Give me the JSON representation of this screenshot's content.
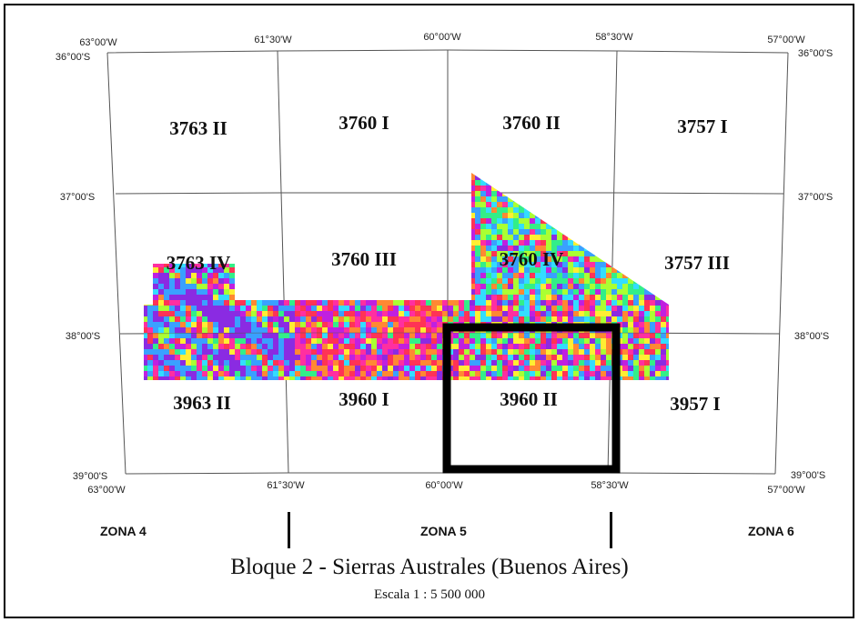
{
  "coordinates": {
    "top": {
      "lon_63": "63°00'W",
      "lat_36_left": "36°00'S",
      "lon_6130": "61°30'W",
      "lon_60": "60°00'W",
      "lon_5830": "58°30'W",
      "lon_57": "57°00'W",
      "lat_36_right": "36°00'S"
    },
    "left": {
      "lat_37": "37°00'S",
      "lat_38": "38°00'S",
      "lat_39": "39°00'S"
    },
    "right": {
      "lat_37": "37°00'S",
      "lat_38": "38°00'S",
      "lat_39": "39°00'S"
    },
    "bottom": {
      "lon_63": "63°00'W",
      "lon_6130": "61°30'W",
      "lon_60": "60°00'W",
      "lon_5830": "58°30'W",
      "lon_57": "57°00'W"
    }
  },
  "sheets": {
    "s3763_II": "3763 II",
    "s3760_I": "3760 I",
    "s3760_II": "3760 II",
    "s3757_I": "3757 I",
    "s3763_IV": "3763 IV",
    "s3760_III": "3760 III",
    "s3760_IV": "3760 IV",
    "s3757_III": "3757 III",
    "s3963_II": "3963 II",
    "s3960_I": "3960 I",
    "s3960_II": "3960 II",
    "s3957_I": "3957 I"
  },
  "zones": {
    "z4": "ZONA 4",
    "z5": "ZONA 5",
    "z6": "ZONA 6"
  },
  "title": "Bloque 2 - Sierras Australes (Buenos Aires)",
  "scale": "Escala 1 : 5 500 000",
  "colors": {
    "palette": [
      "#ff2fa0",
      "#c020e0",
      "#8a2be2",
      "#3aa0ff",
      "#33ddff",
      "#33ee88",
      "#aaff33",
      "#ffee33",
      "#ff8833",
      "#ff3355"
    ]
  }
}
